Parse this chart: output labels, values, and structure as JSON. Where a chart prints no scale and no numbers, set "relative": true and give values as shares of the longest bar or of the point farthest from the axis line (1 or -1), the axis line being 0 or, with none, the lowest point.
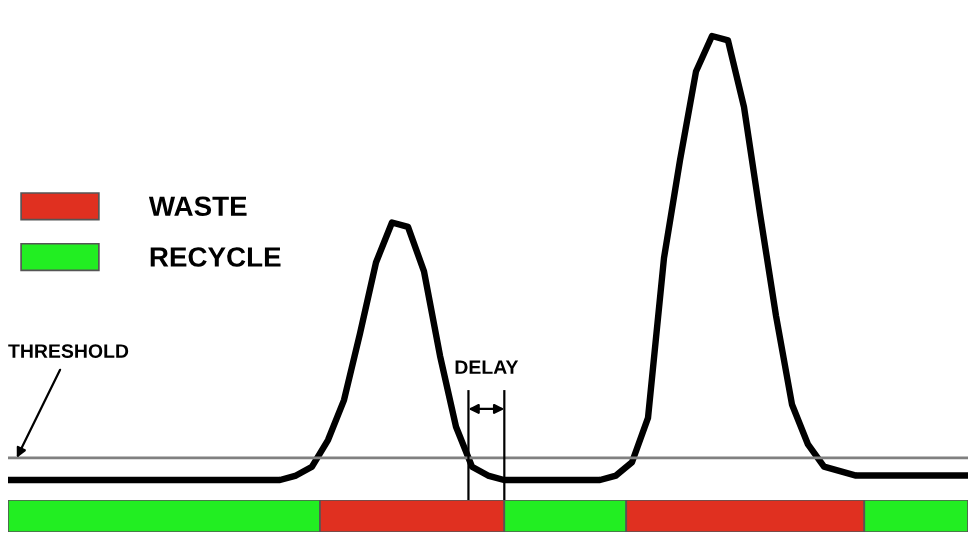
{
  "chart_data": [
    {
      "type": "line",
      "relative": true,
      "categories": [
        null,
        null,
        null,
        null,
        null,
        null,
        null,
        null,
        null,
        null,
        null,
        null,
        null,
        null,
        null,
        null,
        null,
        null,
        null,
        null,
        null,
        null,
        null,
        null,
        null,
        null,
        null,
        null,
        null,
        null,
        null,
        null,
        null,
        null,
        null,
        null,
        null,
        null,
        null,
        null,
        null,
        null,
        null,
        null,
        null,
        null,
        null,
        null,
        null,
        null,
        null,
        null,
        null,
        null,
        null,
        null,
        null,
        null,
        null,
        null,
        null
      ],
      "series": [
        {
          "color": "#000000",
          "values": [
            0,
            0,
            0,
            0,
            0,
            0,
            0,
            0,
            0,
            0,
            0,
            0,
            0,
            0,
            0,
            0,
            0,
            0,
            0.01,
            0.03,
            0.09,
            0.18,
            0.33,
            0.49,
            0.58,
            0.57,
            0.47,
            0.28,
            0.12,
            0.03,
            0.01,
            0,
            0,
            0,
            0,
            0,
            0,
            0,
            0.01,
            0.04,
            0.14,
            0.5,
            0.72,
            0.92,
            1,
            0.99,
            0.84,
            0.6,
            0.37,
            0.17,
            0.08,
            0.03,
            0.02,
            0.01,
            0.01,
            0.01,
            0.01,
            0.01,
            0.01,
            0.01,
            0.01
          ]
        }
      ],
      "ref_lines": [
        {
          "axis": "y",
          "value": 0.05,
          "label": "THRESHOLD",
          "color": "#808080",
          "line_style": "solid"
        }
      ],
      "annotations": [
        "DELAY"
      ],
      "marker": "none",
      "line_style": "solid",
      "grid": false
    },
    {
      "type": "bar",
      "orientation": "horizontal",
      "stacked": true,
      "relative": true,
      "categories": [
        null
      ],
      "series": [
        {
          "name": "RECYCLE",
          "color": "#22ee22",
          "values": [
            0.325
          ]
        },
        {
          "name": "WASTE",
          "color": "#e03020",
          "values": [
            0.192
          ]
        },
        {
          "color": "#22ee22",
          "values": [
            0.127
          ]
        },
        {
          "color": "#e03020",
          "values": [
            0.248
          ]
        },
        {
          "color": "#22ee22",
          "values": [
            0.108
          ]
        }
      ],
      "legend": "top left",
      "grid": false
    }
  ]
}
